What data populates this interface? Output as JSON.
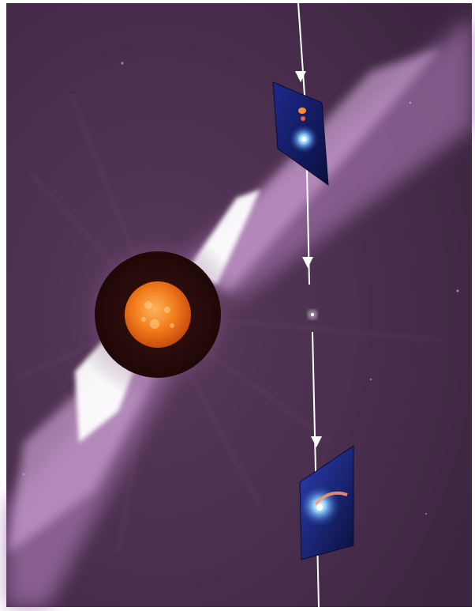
{
  "image": {
    "kind": "coronagraph composite",
    "background_color": "#4a2f4e",
    "corona_color": "#b987c0",
    "streamer_color": "#ffffff",
    "occulter_color": "#2a0c0a",
    "sun_color": "#f07a1a",
    "inset_panel_color": "#141a6b",
    "comet_core_color": "#6fb0ff",
    "trajectory_color": "#ffffff",
    "comet_tail_color": "#ff7a3a"
  }
}
